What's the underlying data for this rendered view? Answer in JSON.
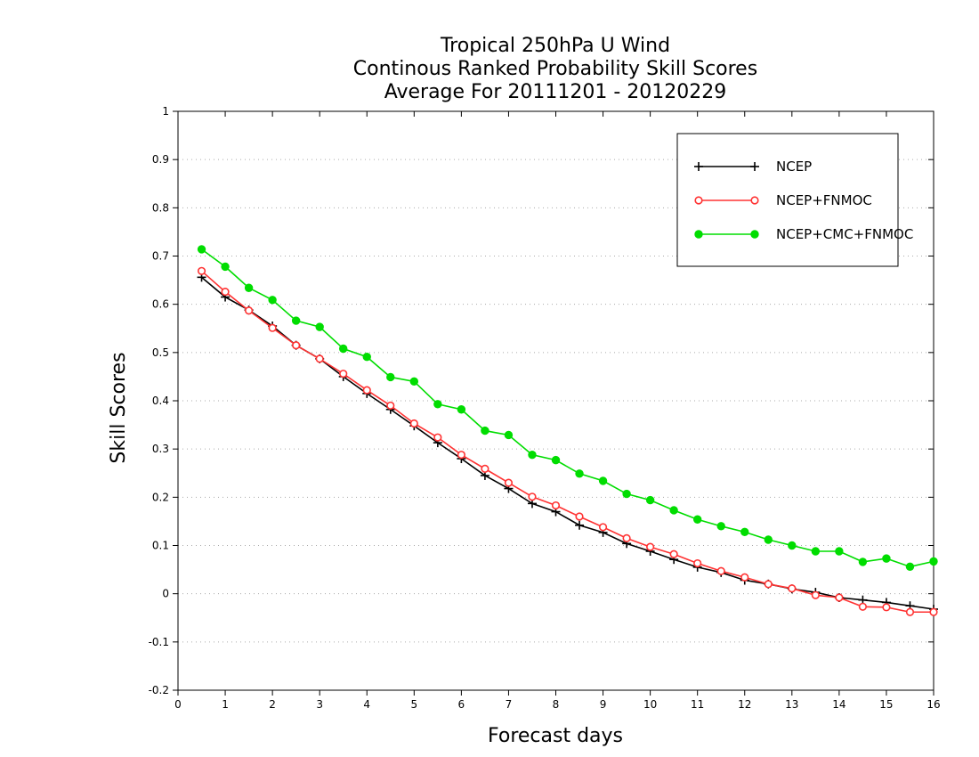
{
  "chart_data": {
    "type": "line",
    "title": [
      "Tropical 250hPa U Wind",
      "Continous Ranked Probability Skill Scores",
      "Average For 20111201 - 20120229"
    ],
    "xlabel": "Forecast days",
    "ylabel": "Skill Scores",
    "xlim": [
      0,
      16
    ],
    "ylim": [
      -0.2,
      1
    ],
    "xticks": [
      0,
      1,
      2,
      3,
      4,
      5,
      6,
      7,
      8,
      9,
      10,
      11,
      12,
      13,
      14,
      15,
      16
    ],
    "yticks": [
      "-0.2",
      "-0.1",
      "0",
      "0.1",
      "0.2",
      "0.3",
      "0.4",
      "0.5",
      "0.6",
      "0.7",
      "0.8",
      "0.9",
      "1"
    ],
    "grid": "horizontal dotted",
    "legend_position": "top-right",
    "x": [
      0.5,
      1,
      1.5,
      2,
      2.5,
      3,
      3.5,
      4,
      4.5,
      5,
      5.5,
      6,
      6.5,
      7,
      7.5,
      8,
      8.5,
      9,
      9.5,
      10,
      10.5,
      11,
      11.5,
      12,
      12.5,
      13,
      13.5,
      14,
      14.5,
      15,
      15.5,
      16
    ],
    "series": [
      {
        "name": "NCEP",
        "color": "#000000",
        "marker": "plus",
        "values": [
          0.656,
          0.615,
          0.588,
          0.555,
          0.515,
          0.487,
          0.45,
          0.415,
          0.382,
          0.348,
          0.313,
          0.28,
          0.245,
          0.218,
          0.187,
          0.17,
          0.142,
          0.127,
          0.104,
          0.088,
          0.071,
          0.055,
          0.044,
          0.028,
          0.02,
          0.01,
          0.003,
          -0.008,
          -0.013,
          -0.018,
          -0.025,
          -0.032
        ]
      },
      {
        "name": "NCEP+FNMOC",
        "color": "#ff3333",
        "marker": "open-circle",
        "values": [
          0.669,
          0.626,
          0.587,
          0.551,
          0.515,
          0.487,
          0.456,
          0.422,
          0.39,
          0.353,
          0.324,
          0.288,
          0.259,
          0.23,
          0.201,
          0.183,
          0.16,
          0.138,
          0.115,
          0.097,
          0.082,
          0.063,
          0.047,
          0.034,
          0.02,
          0.011,
          -0.003,
          -0.008,
          -0.027,
          -0.028,
          -0.038,
          -0.038
        ]
      },
      {
        "name": "NCEP+CMC+FNMOC",
        "color": "#00dd00",
        "marker": "filled-circle",
        "values": [
          0.714,
          0.678,
          0.634,
          0.609,
          0.566,
          0.553,
          0.508,
          0.491,
          0.449,
          0.44,
          0.393,
          0.382,
          0.338,
          0.329,
          0.288,
          0.277,
          0.249,
          0.234,
          0.207,
          0.194,
          0.173,
          0.154,
          0.14,
          0.128,
          0.112,
          0.1,
          0.088,
          0.088,
          0.066,
          0.073,
          0.056,
          0.067
        ]
      }
    ]
  }
}
